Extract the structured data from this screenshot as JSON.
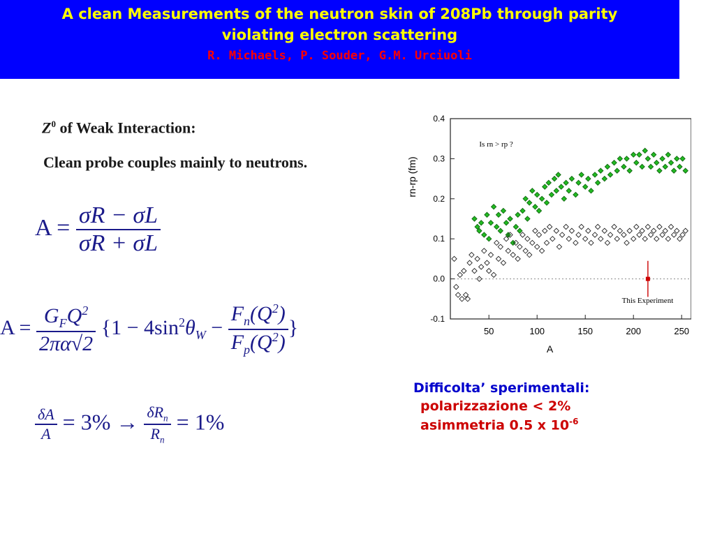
{
  "header": {
    "title_line1": "A clean Measurements of the neutron skin of 208Pb through parity",
    "title_line2": "violating electron scattering",
    "authors": "R. Michaels, P. Souder, G.M. Urciuoli",
    "bg_color": "#0000ff",
    "title_color": "#ffff00",
    "authors_color": "#ff0000"
  },
  "left": {
    "weak_symbol": "Z",
    "weak_sup": "0",
    "weak_text": " of Weak Interaction:",
    "probe_text": "Clean probe couples mainly to neutrons."
  },
  "formulas": {
    "asym_def": {
      "lhs": "A =",
      "num": "σR − σL",
      "den": "σR + σL"
    },
    "asym_theory": {
      "text": "A = GFQ²/(2πα√2) {1 − 4sin²θW − Fn(Q²)/Fp(Q²)}"
    },
    "precision": {
      "text": "δA/A = 3% → δRn/Rn = 1%"
    }
  },
  "difficulties": {
    "heading": "Difficolta’ sperimentali:",
    "item1": "polarizzazione < 2%",
    "item2_text": "asimmetria 0.5 x 10",
    "item2_exp": "-6"
  },
  "chart_data": {
    "type": "scatter",
    "xlabel": "A",
    "ylabel": "rn-rp (fm)",
    "xlim": [
      10,
      260
    ],
    "ylim": [
      -0.1,
      0.4
    ],
    "x_ticks": [
      50,
      100,
      150,
      200,
      250
    ],
    "y_ticks": [
      -0.1,
      0.0,
      0.1,
      0.2,
      0.3,
      0.4
    ],
    "annotation_question": "Is rn > rp ?",
    "annotation_experiment": "This Experiment",
    "experiment_point": {
      "x": 215,
      "y": 0.0,
      "err_low": -0.045,
      "err_high": 0.045
    },
    "series": [
      {
        "color": "#22bb22",
        "points": [
          [
            35,
            0.15
          ],
          [
            38,
            0.13
          ],
          [
            40,
            0.12
          ],
          [
            42,
            0.14
          ],
          [
            45,
            0.11
          ],
          [
            48,
            0.16
          ],
          [
            50,
            0.1
          ],
          [
            52,
            0.14
          ],
          [
            55,
            0.18
          ],
          [
            58,
            0.13
          ],
          [
            60,
            0.16
          ],
          [
            62,
            0.12
          ],
          [
            65,
            0.17
          ],
          [
            68,
            0.14
          ],
          [
            70,
            0.11
          ],
          [
            72,
            0.15
          ],
          [
            75,
            0.09
          ],
          [
            78,
            0.13
          ],
          [
            80,
            0.16
          ],
          [
            82,
            0.12
          ],
          [
            85,
            0.17
          ],
          [
            88,
            0.2
          ],
          [
            90,
            0.15
          ],
          [
            92,
            0.19
          ],
          [
            95,
            0.22
          ],
          [
            98,
            0.18
          ],
          [
            100,
            0.21
          ],
          [
            102,
            0.17
          ],
          [
            105,
            0.2
          ],
          [
            108,
            0.23
          ],
          [
            110,
            0.19
          ],
          [
            112,
            0.24
          ],
          [
            115,
            0.21
          ],
          [
            118,
            0.25
          ],
          [
            120,
            0.22
          ],
          [
            122,
            0.26
          ],
          [
            125,
            0.23
          ],
          [
            128,
            0.2
          ],
          [
            130,
            0.24
          ],
          [
            133,
            0.22
          ],
          [
            136,
            0.25
          ],
          [
            140,
            0.21
          ],
          [
            143,
            0.24
          ],
          [
            146,
            0.26
          ],
          [
            150,
            0.23
          ],
          [
            153,
            0.25
          ],
          [
            156,
            0.22
          ],
          [
            160,
            0.26
          ],
          [
            163,
            0.24
          ],
          [
            166,
            0.27
          ],
          [
            170,
            0.25
          ],
          [
            173,
            0.28
          ],
          [
            176,
            0.26
          ],
          [
            180,
            0.29
          ],
          [
            183,
            0.27
          ],
          [
            186,
            0.3
          ],
          [
            190,
            0.28
          ],
          [
            193,
            0.3
          ],
          [
            196,
            0.27
          ],
          [
            200,
            0.31
          ],
          [
            203,
            0.29
          ],
          [
            206,
            0.31
          ],
          [
            209,
            0.28
          ],
          [
            212,
            0.32
          ],
          [
            215,
            0.3
          ],
          [
            218,
            0.28
          ],
          [
            221,
            0.31
          ],
          [
            224,
            0.29
          ],
          [
            227,
            0.27
          ],
          [
            230,
            0.3
          ],
          [
            233,
            0.28
          ],
          [
            236,
            0.31
          ],
          [
            239,
            0.29
          ],
          [
            242,
            0.27
          ],
          [
            245,
            0.3
          ],
          [
            248,
            0.28
          ],
          [
            251,
            0.3
          ],
          [
            254,
            0.27
          ]
        ]
      },
      {
        "color": "#222222",
        "points": [
          [
            14,
            0.05
          ],
          [
            16,
            -0.02
          ],
          [
            18,
            -0.04
          ],
          [
            20,
            0.01
          ],
          [
            22,
            -0.05
          ],
          [
            24,
            0.02
          ],
          [
            26,
            -0.04
          ],
          [
            28,
            -0.05
          ],
          [
            30,
            0.04
          ],
          [
            32,
            0.06
          ],
          [
            35,
            0.02
          ],
          [
            38,
            0.05
          ],
          [
            40,
            0.0
          ],
          [
            42,
            0.03
          ],
          [
            45,
            0.07
          ],
          [
            48,
            0.04
          ],
          [
            50,
            0.02
          ],
          [
            52,
            0.06
          ],
          [
            55,
            0.01
          ],
          [
            58,
            0.09
          ],
          [
            60,
            0.05
          ],
          [
            62,
            0.08
          ],
          [
            65,
            0.04
          ],
          [
            68,
            0.1
          ],
          [
            70,
            0.07
          ],
          [
            72,
            0.11
          ],
          [
            75,
            0.06
          ],
          [
            78,
            0.09
          ],
          [
            80,
            0.05
          ],
          [
            82,
            0.08
          ],
          [
            85,
            0.11
          ],
          [
            88,
            0.07
          ],
          [
            90,
            0.1
          ],
          [
            92,
            0.06
          ],
          [
            95,
            0.09
          ],
          [
            98,
            0.12
          ],
          [
            100,
            0.08
          ],
          [
            102,
            0.11
          ],
          [
            105,
            0.07
          ],
          [
            108,
            0.12
          ],
          [
            110,
            0.09
          ],
          [
            113,
            0.13
          ],
          [
            116,
            0.1
          ],
          [
            120,
            0.12
          ],
          [
            123,
            0.08
          ],
          [
            126,
            0.11
          ],
          [
            130,
            0.13
          ],
          [
            133,
            0.1
          ],
          [
            136,
            0.12
          ],
          [
            140,
            0.09
          ],
          [
            143,
            0.11
          ],
          [
            146,
            0.13
          ],
          [
            150,
            0.1
          ],
          [
            153,
            0.12
          ],
          [
            156,
            0.09
          ],
          [
            160,
            0.11
          ],
          [
            163,
            0.13
          ],
          [
            166,
            0.1
          ],
          [
            170,
            0.12
          ],
          [
            173,
            0.09
          ],
          [
            176,
            0.11
          ],
          [
            180,
            0.13
          ],
          [
            183,
            0.1
          ],
          [
            186,
            0.12
          ],
          [
            190,
            0.11
          ],
          [
            193,
            0.09
          ],
          [
            196,
            0.12
          ],
          [
            200,
            0.1
          ],
          [
            203,
            0.13
          ],
          [
            206,
            0.11
          ],
          [
            209,
            0.12
          ],
          [
            212,
            0.1
          ],
          [
            215,
            0.13
          ],
          [
            218,
            0.11
          ],
          [
            221,
            0.12
          ],
          [
            224,
            0.1
          ],
          [
            227,
            0.13
          ],
          [
            230,
            0.11
          ],
          [
            233,
            0.12
          ],
          [
            236,
            0.1
          ],
          [
            239,
            0.13
          ],
          [
            242,
            0.11
          ],
          [
            245,
            0.12
          ],
          [
            248,
            0.1
          ],
          [
            251,
            0.11
          ],
          [
            254,
            0.12
          ]
        ]
      }
    ]
  }
}
